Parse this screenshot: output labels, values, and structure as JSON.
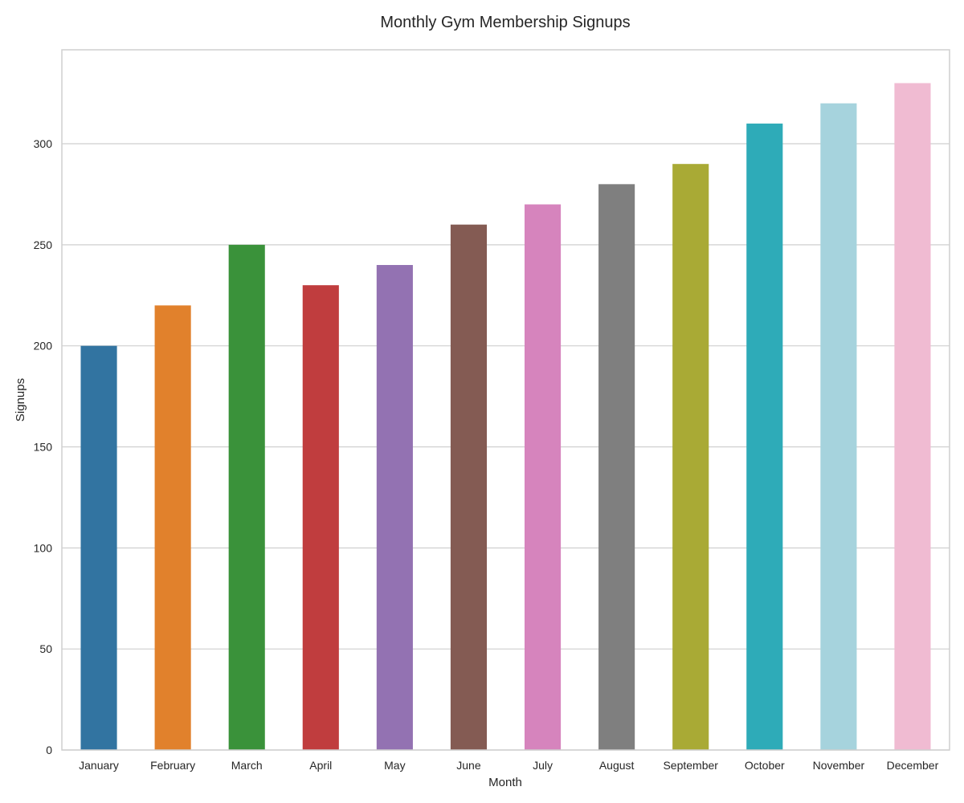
{
  "chart_data": {
    "type": "bar",
    "title": "Monthly Gym Membership Signups",
    "xlabel": "Month",
    "ylabel": "Signups",
    "categories": [
      "January",
      "February",
      "March",
      "April",
      "May",
      "June",
      "July",
      "August",
      "September",
      "October",
      "November",
      "December"
    ],
    "values": [
      200,
      220,
      250,
      230,
      240,
      260,
      270,
      280,
      290,
      310,
      320,
      330
    ],
    "colors": [
      "#3274a1",
      "#e1812c",
      "#3a923a",
      "#c03d3e",
      "#9372b2",
      "#845b53",
      "#d684bd",
      "#7f7f7f",
      "#a9aa35",
      "#2eabb8",
      "#a6d3dd",
      "#f0bbd2"
    ],
    "ylim": [
      0,
      346.5
    ],
    "yticks": [
      0,
      50,
      100,
      150,
      200,
      250,
      300
    ],
    "grid": true,
    "legend": false
  }
}
